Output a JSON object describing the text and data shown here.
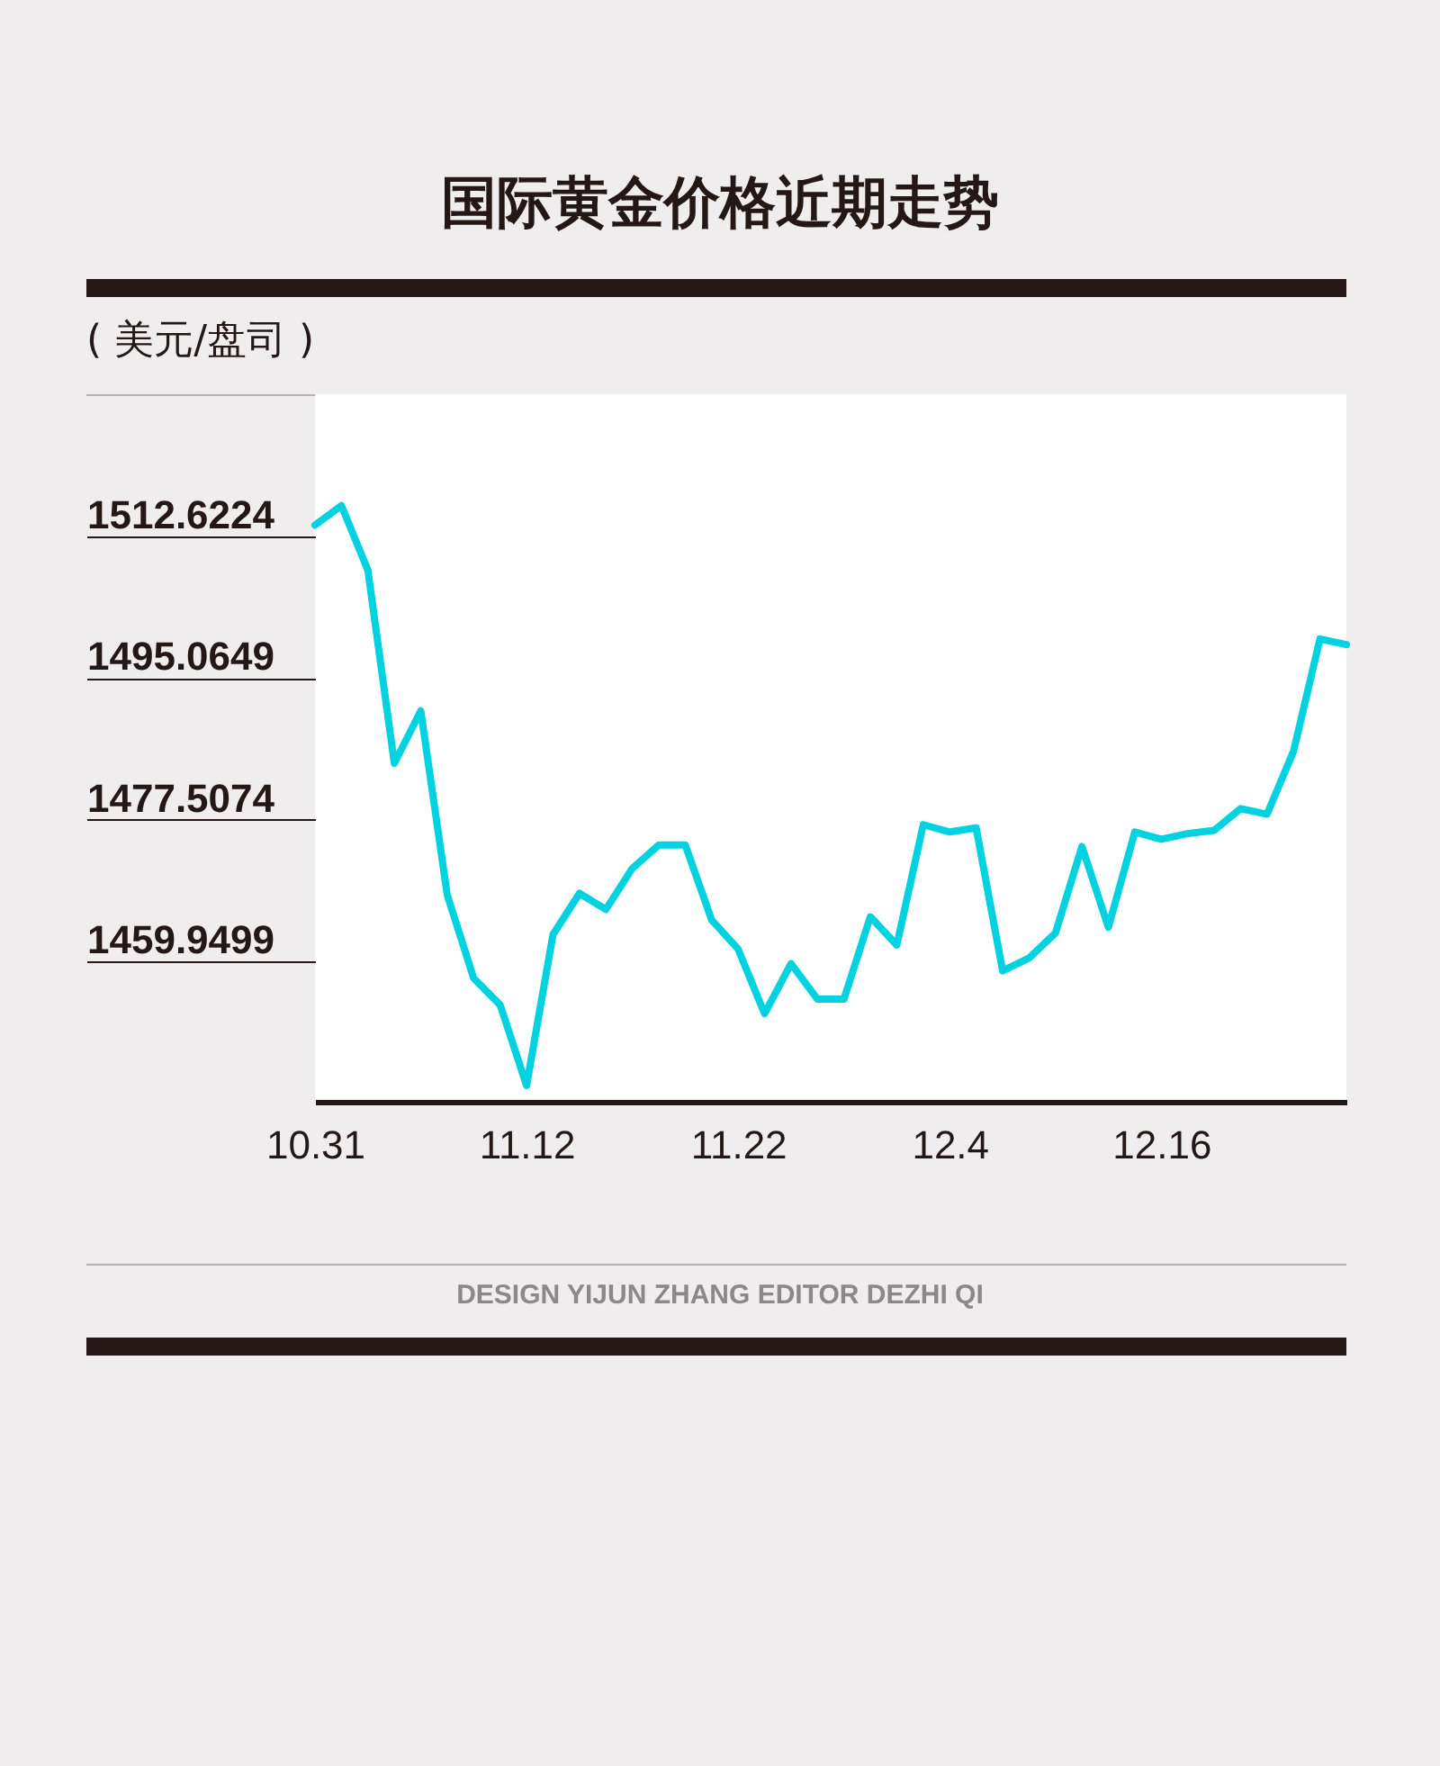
{
  "chart_data": {
    "type": "line",
    "title": "国际黄金价格近期走势",
    "ylabel": "( 美元/盘司 )",
    "categories": [
      "10.31",
      null,
      null,
      null,
      null,
      null,
      null,
      null,
      "11.12",
      null,
      null,
      null,
      null,
      null,
      null,
      null,
      "11.22",
      null,
      null,
      null,
      null,
      null,
      null,
      null,
      "12.4",
      null,
      null,
      null,
      null,
      null,
      null,
      null,
      "12.16",
      null,
      null,
      null,
      null,
      null,
      null,
      null
    ],
    "values": [
      1514.0,
      1516.4,
      1508.4,
      1484.5,
      1491.0,
      1468.2,
      1457.9,
      1454.6,
      1444.6,
      1463.3,
      1468.4,
      1466.4,
      1471.5,
      1474.4,
      1474.4,
      1465.1,
      1461.5,
      1453.5,
      1459.7,
      1455.3,
      1455.3,
      1465.5,
      1462.0,
      1476.9,
      1476.0,
      1476.5,
      1458.8,
      1460.4,
      1463.5,
      1474.2,
      1464.2,
      1476.0,
      1475.1,
      1475.8,
      1476.2,
      1478.9,
      1478.2,
      1486.0,
      1499.9,
      1499.2
    ],
    "color": "#00d2e0",
    "ylim": [
      1442.6,
      1530.2
    ],
    "yticks": [
      1459.9499,
      1477.5074,
      1495.0649,
      1512.6224
    ],
    "annotations": [
      "DESIGN YIJUN ZHANG   EDITOR DEZHI QI"
    ]
  }
}
